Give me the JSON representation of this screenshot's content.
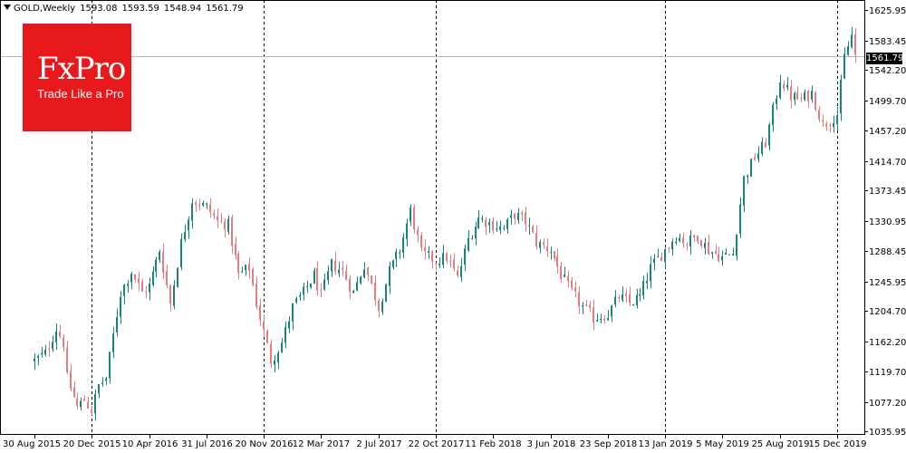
{
  "header": {
    "symbol": "GOLD,Weekly",
    "open": "1593.08",
    "high": "1593.59",
    "low": "1548.94",
    "close": "1561.79"
  },
  "logo": {
    "brand": "FxPro",
    "tagline": "Trade Like a Pro"
  },
  "colors": {
    "up": "#17857a",
    "down": "#e47d7e",
    "background": "#ffffff",
    "axis": "#000000",
    "logo": "#e8191b"
  },
  "chart_data": {
    "type": "candlestick",
    "title": "GOLD,Weekly",
    "ylim": [
      1031.0,
      1640.0
    ],
    "y_ticks": [
      "1625.95",
      "1583.45",
      "1542.20",
      "1499.70",
      "1457.20",
      "1414.70",
      "1373.45",
      "1330.95",
      "1288.45",
      "1245.95",
      "1204.70",
      "1162.20",
      "1119.70",
      "1077.20",
      "1035.95"
    ],
    "x_ticks": [
      "30 Aug 2015",
      "20 Dec 2015",
      "10 Apr 2016",
      "31 Jul 2016",
      "20 Nov 2016",
      "12 Mar 2017",
      "2 Jul 2017",
      "22 Oct 2017",
      "11 Feb 2018",
      "3 Jun 2018",
      "23 Sep 2018",
      "13 Jan 2019",
      "5 May 2019",
      "25 Aug 2019",
      "15 Dec 2019"
    ],
    "period_separators": [
      "20 Dec 2015",
      "20 Nov 2016",
      "22 Oct 2017",
      "13 Jan 2019",
      "15 Dec 2019"
    ],
    "current_price": "1561.79",
    "close_path": [
      [
        "30 Aug 2015",
        1135
      ],
      [
        "20 Sep 2015",
        1145
      ],
      [
        "11 Oct 2015",
        1180
      ],
      [
        "25 Oct 2015",
        1160
      ],
      [
        "1 Nov 2015",
        1110
      ],
      [
        "22 Nov 2015",
        1070
      ],
      [
        "6 Dec 2015",
        1080
      ],
      [
        "20 Dec 2015",
        1065
      ],
      [
        "3 Jan 2016",
        1100
      ],
      [
        "17 Jan 2016",
        1110
      ],
      [
        "31 Jan 2016",
        1170
      ],
      [
        "14 Feb 2016",
        1230
      ],
      [
        "6 Mar 2016",
        1260
      ],
      [
        "27 Mar 2016",
        1230
      ],
      [
        "10 Apr 2016",
        1240
      ],
      [
        "1 May 2016",
        1290
      ],
      [
        "22 May 2016",
        1215
      ],
      [
        "12 Jun 2016",
        1300
      ],
      [
        "3 Jul 2016",
        1360
      ],
      [
        "31 Jul 2016",
        1350
      ],
      [
        "21 Aug 2016",
        1330
      ],
      [
        "11 Sep 2016",
        1325
      ],
      [
        "2 Oct 2016",
        1255
      ],
      [
        "23 Oct 2016",
        1265
      ],
      [
        "6 Nov 2016",
        1215
      ],
      [
        "20 Nov 2016",
        1175
      ],
      [
        "4 Dec 2016",
        1135
      ],
      [
        "25 Dec 2016",
        1160
      ],
      [
        "15 Jan 2017",
        1210
      ],
      [
        "5 Feb 2017",
        1230
      ],
      [
        "26 Feb 2017",
        1255
      ],
      [
        "12 Mar 2017",
        1225
      ],
      [
        "2 Apr 2017",
        1270
      ],
      [
        "23 Apr 2017",
        1260
      ],
      [
        "14 May 2017",
        1230
      ],
      [
        "4 Jun 2017",
        1270
      ],
      [
        "2 Jul 2017",
        1210
      ],
      [
        "23 Jul 2017",
        1260
      ],
      [
        "13 Aug 2017",
        1290
      ],
      [
        "3 Sep 2017",
        1345
      ],
      [
        "24 Sep 2017",
        1285
      ],
      [
        "22 Oct 2017",
        1275
      ],
      [
        "12 Nov 2017",
        1280
      ],
      [
        "3 Dec 2017",
        1250
      ],
      [
        "24 Dec 2017",
        1305
      ],
      [
        "14 Jan 2018",
        1335
      ],
      [
        "11 Feb 2018",
        1325
      ],
      [
        "4 Mar 2018",
        1320
      ],
      [
        "25 Mar 2018",
        1340
      ],
      [
        "15 Apr 2018",
        1330
      ],
      [
        "6 May 2018",
        1300
      ],
      [
        "3 Jun 2018",
        1290
      ],
      [
        "24 Jun 2018",
        1255
      ],
      [
        "15 Jul 2018",
        1230
      ],
      [
        "5 Aug 2018",
        1210
      ],
      [
        "26 Aug 2018",
        1195
      ],
      [
        "23 Sep 2018",
        1200
      ],
      [
        "14 Oct 2018",
        1225
      ],
      [
        "4 Nov 2018",
        1215
      ],
      [
        "25 Nov 2018",
        1225
      ],
      [
        "16 Dec 2018",
        1265
      ],
      [
        "13 Jan 2019",
        1290
      ],
      [
        "3 Feb 2019",
        1310
      ],
      [
        "24 Feb 2019",
        1300
      ],
      [
        "17 Mar 2019",
        1310
      ],
      [
        "7 Apr 2019",
        1290
      ],
      [
        "5 May 2019",
        1280
      ],
      [
        "26 May 2019",
        1285
      ],
      [
        "16 Jun 2019",
        1390
      ],
      [
        "7 Jul 2019",
        1420
      ],
      [
        "28 Jul 2019",
        1440
      ],
      [
        "25 Aug 2019",
        1530
      ],
      [
        "15 Sep 2019",
        1505
      ],
      [
        "6 Oct 2019",
        1500
      ],
      [
        "27 Oct 2019",
        1510
      ],
      [
        "17 Nov 2019",
        1465
      ],
      [
        "15 Dec 2019",
        1480
      ],
      [
        "29 Dec 2019",
        1560
      ],
      [
        "12 Jan 2020",
        1590
      ],
      [
        "19 Jan 2020",
        1562
      ]
    ]
  }
}
